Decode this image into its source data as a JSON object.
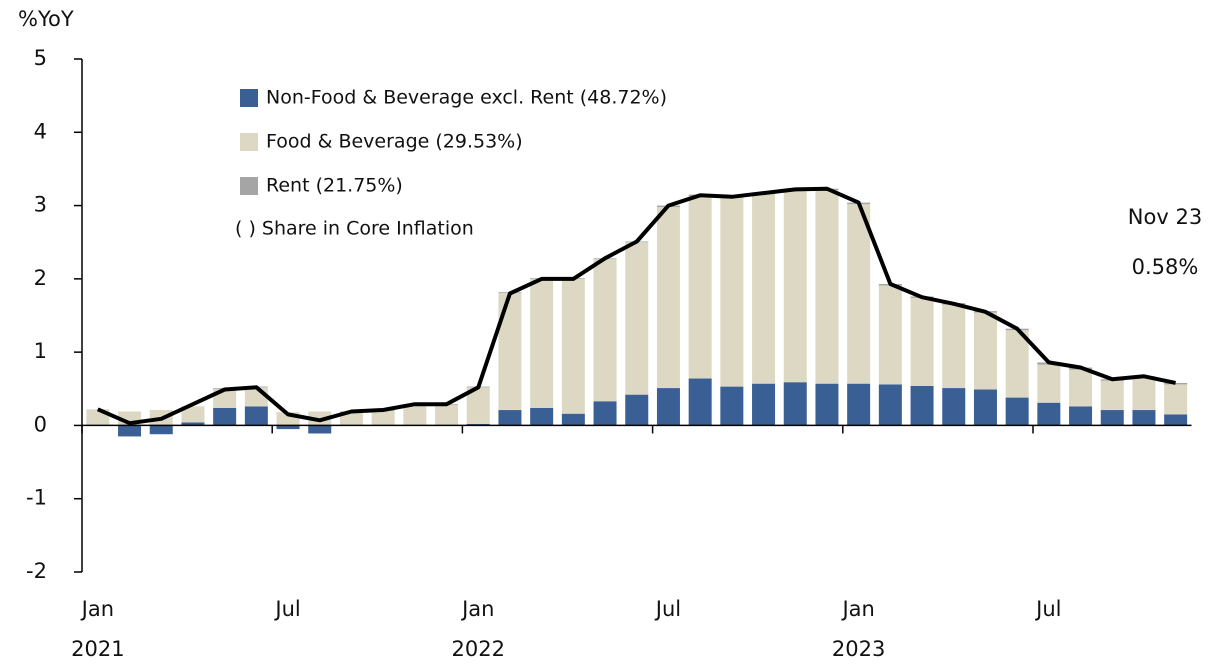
{
  "chart_data": {
    "type": "stacked-bar-line",
    "y_label": "%YoY",
    "categories": [
      "Jan",
      null,
      null,
      null,
      null,
      null,
      "Jul",
      null,
      null,
      null,
      null,
      null,
      "Jan",
      null,
      null,
      null,
      null,
      null,
      "Jul",
      null,
      null,
      null,
      null,
      null,
      "Jan",
      null,
      null,
      null,
      null,
      null,
      "Jul",
      null,
      null,
      null,
      null
    ],
    "years": [
      "2021",
      "2022",
      "2023"
    ],
    "series": [
      {
        "name": "Non-Food & Beverage excl. Rent (48.72%)",
        "color": "#3a5f94",
        "values": [
          0,
          -0.15,
          -0.12,
          0.04,
          0.24,
          0.26,
          -0.05,
          -0.11,
          0,
          0,
          0,
          0,
          0.02,
          0.21,
          0.24,
          0.16,
          0.33,
          0.42,
          0.51,
          0.64,
          0.53,
          0.57,
          0.59,
          0.57,
          0.57,
          0.56,
          0.54,
          0.51,
          0.49,
          0.38,
          0.31,
          0.26,
          0.21,
          0.21,
          0.15
        ]
      },
      {
        "name": "Food & Beverage (29.53%)",
        "color": "#dcd8c4",
        "values": [
          0.22,
          0.19,
          0.21,
          0.22,
          0.26,
          0.26,
          0.18,
          0.19,
          0.18,
          0.2,
          0.28,
          0.28,
          0.5,
          1.6,
          1.76,
          1.84,
          1.94,
          2.08,
          2.47,
          2.49,
          2.58,
          2.59,
          2.62,
          2.64,
          2.45,
          1.35,
          1.2,
          1.14,
          1.05,
          0.92,
          0.52,
          0.5,
          0.4,
          0.44,
          0.41
        ]
      },
      {
        "name": "Rent (21.75%)",
        "color": "#a5a5a5",
        "values": [
          0,
          0,
          0,
          0,
          0.01,
          0.01,
          0,
          0,
          0.01,
          0.01,
          0.01,
          0.01,
          0.01,
          0.01,
          0.01,
          0.01,
          0.01,
          0.01,
          0.02,
          0.02,
          0.02,
          0.02,
          0.02,
          0.02,
          0.02,
          0.02,
          0.02,
          0.02,
          0.02,
          0.02,
          0.03,
          0.03,
          0.02,
          0.02,
          0.02
        ]
      }
    ],
    "line": {
      "color": "#000000",
      "values": [
        0.22,
        0.03,
        0.09,
        0.29,
        0.49,
        0.52,
        0.15,
        0.07,
        0.19,
        0.21,
        0.29,
        0.29,
        0.52,
        1.8,
        2.0,
        2.0,
        2.28,
        2.51,
        3.0,
        3.14,
        3.12,
        3.17,
        3.22,
        3.23,
        3.04,
        1.93,
        1.75,
        1.66,
        1.55,
        1.32,
        0.86,
        0.79,
        0.63,
        0.67,
        0.58
      ]
    },
    "legend_note": "( ) Share in Core Inflation",
    "annotations": [
      "Nov 23",
      "0.58%"
    ],
    "ylim": [
      -2,
      5
    ],
    "yticks": [
      -2,
      -1,
      0,
      1,
      2,
      3,
      4,
      5
    ]
  }
}
